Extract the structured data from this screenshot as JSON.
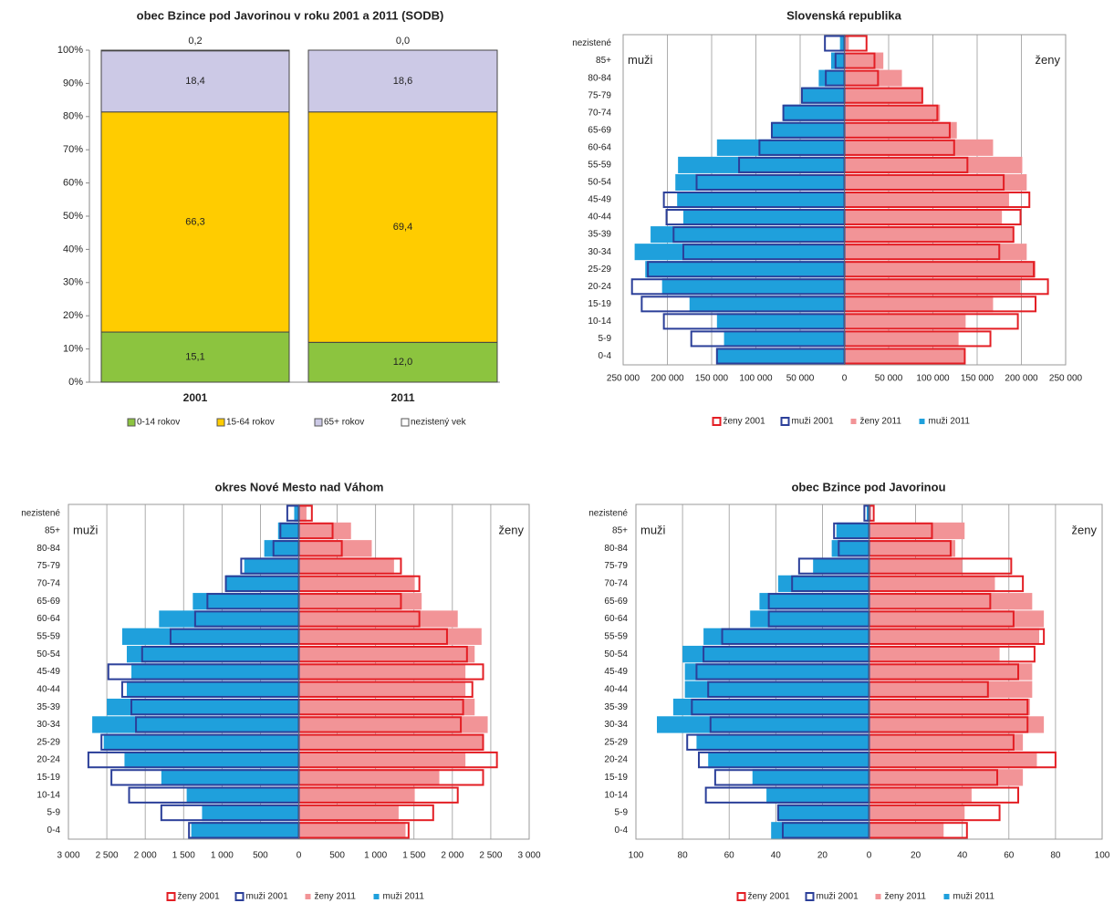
{
  "chart_data": [
    {
      "type": "stacked_bar",
      "title": "obec Bzince pod Javorinou v roku 2001 a 2011 (SODB)",
      "categories": [
        "2001",
        "2011"
      ],
      "series": [
        {
          "name": "0-14 rokov",
          "color": "#8cc43f",
          "values": [
            15.1,
            12.0
          ],
          "value_labels": [
            "15,1",
            "12,0"
          ]
        },
        {
          "name": "15-64 rokov",
          "color": "#ffcc00",
          "values": [
            66.3,
            69.4
          ],
          "value_labels": [
            "66,3",
            "69,4"
          ]
        },
        {
          "name": "65+ rokov",
          "color": "#ccc9e6",
          "values": [
            18.4,
            18.6
          ],
          "value_labels": [
            "18,4",
            "18,6"
          ]
        },
        {
          "name": "nezistený vek",
          "color": "#ffffff",
          "values": [
            0.2,
            0.0
          ],
          "value_labels": [
            "0,2",
            "0,0"
          ]
        }
      ],
      "ylim": [
        0,
        100
      ],
      "yticks": [
        {
          "value": 0,
          "label": "0%"
        },
        {
          "value": 10,
          "label": "10%"
        },
        {
          "value": 20,
          "label": "20%"
        },
        {
          "value": 30,
          "label": "30%"
        },
        {
          "value": 40,
          "label": "40%"
        },
        {
          "value": 50,
          "label": "50%"
        },
        {
          "value": 60,
          "label": "60%"
        },
        {
          "value": 70,
          "label": "70%"
        },
        {
          "value": 80,
          "label": "80%"
        },
        {
          "value": 90,
          "label": "90%"
        },
        {
          "value": 100,
          "label": "100%"
        }
      ]
    },
    {
      "type": "pyramid",
      "title": "Slovenská republika",
      "categories": [
        "0-4",
        "5-9",
        "10-14",
        "15-19",
        "20-24",
        "25-29",
        "30-34",
        "35-39",
        "40-44",
        "45-49",
        "50-54",
        "55-59",
        "60-64",
        "65-69",
        "70-74",
        "75-79",
        "80-84",
        "85+",
        "nezistené"
      ],
      "series": [
        {
          "name": "ženy 2001",
          "color": "#e31e24",
          "style": "outline",
          "side": "right",
          "values": [
            136000,
            165000,
            196000,
            216000,
            230000,
            214000,
            175000,
            191000,
            199000,
            209000,
            180000,
            139000,
            124000,
            119000,
            105000,
            88000,
            38000,
            34000,
            25000
          ]
        },
        {
          "name": "muži 2001",
          "color": "#2b3f99",
          "style": "outline",
          "side": "left",
          "values": [
            144000,
            173000,
            204000,
            229000,
            240000,
            222000,
            182000,
            193000,
            201000,
            204000,
            167000,
            119000,
            96000,
            82000,
            69000,
            48000,
            21000,
            10000,
            22000
          ]
        },
        {
          "name": "ženy 2011",
          "color": "#f29497",
          "style": "fill",
          "side": "right",
          "values": [
            136000,
            129000,
            137000,
            168000,
            199000,
            216000,
            206000,
            191000,
            178000,
            186000,
            206000,
            201000,
            168000,
            127000,
            108000,
            88000,
            65000,
            44000,
            5000
          ]
        },
        {
          "name": "muži 2011",
          "color": "#1fa0dc",
          "style": "fill",
          "side": "left",
          "values": [
            144000,
            136000,
            144000,
            175000,
            206000,
            225000,
            237000,
            219000,
            182000,
            189000,
            191000,
            188000,
            144000,
            82000,
            69000,
            48000,
            29000,
            15000,
            5000
          ]
        }
      ],
      "xlim": [
        -250000,
        250000
      ],
      "xticks": [
        {
          "value": -250000,
          "label": "250 000"
        },
        {
          "value": -200000,
          "label": "200 000"
        },
        {
          "value": -150000,
          "label": "150 000"
        },
        {
          "value": -100000,
          "label": "100 000"
        },
        {
          "value": -50000,
          "label": "50 000"
        },
        0,
        {
          "value": 50000,
          "label": "50 000"
        },
        {
          "value": 100000,
          "label": "100 000"
        },
        {
          "value": 150000,
          "label": "150 000"
        },
        {
          "value": 200000,
          "label": "200 000"
        },
        {
          "value": 250000,
          "label": "250 000"
        }
      ],
      "negative_tick_color": "#e31e24",
      "grid": true,
      "annotations": [
        "muži",
        "ženy"
      ]
    },
    {
      "type": "pyramid",
      "title": "okres Nové Mesto nad Váhom",
      "categories": [
        "0-4",
        "5-9",
        "10-14",
        "15-19",
        "20-24",
        "25-29",
        "30-34",
        "35-39",
        "40-44",
        "45-49",
        "50-54",
        "55-59",
        "60-64",
        "65-69",
        "70-74",
        "75-79",
        "80-84",
        "85+",
        "nezistené"
      ],
      "series": [
        {
          "name": "ženy 2001",
          "color": "#e31e24",
          "style": "outline",
          "side": "right",
          "values": [
            1430,
            1750,
            2070,
            2400,
            2580,
            2400,
            2110,
            2140,
            2260,
            2400,
            2190,
            1930,
            1570,
            1330,
            1570,
            1330,
            560,
            440,
            170
          ]
        },
        {
          "name": "muži 2001",
          "color": "#2b3f99",
          "style": "outline",
          "side": "left",
          "values": [
            1430,
            1790,
            2210,
            2440,
            2740,
            2570,
            2120,
            2180,
            2300,
            2480,
            2040,
            1670,
            1350,
            1190,
            950,
            750,
            330,
            240,
            150
          ]
        },
        {
          "name": "ženy 2011",
          "color": "#f29497",
          "style": "fill",
          "side": "right",
          "values": [
            1390,
            1300,
            1510,
            1830,
            2170,
            2400,
            2460,
            2290,
            2170,
            2170,
            2290,
            2380,
            2070,
            1600,
            1510,
            1240,
            950,
            680,
            100
          ]
        },
        {
          "name": "muži 2011",
          "color": "#1fa0dc",
          "style": "fill",
          "side": "left",
          "values": [
            1400,
            1260,
            1460,
            1790,
            2270,
            2540,
            2690,
            2500,
            2240,
            2180,
            2240,
            2300,
            1820,
            1380,
            950,
            710,
            450,
            270,
            60
          ]
        }
      ],
      "xlim": [
        -3000,
        3000
      ],
      "xticks": [
        {
          "value": -3000,
          "label": "3 000"
        },
        {
          "value": -2500,
          "label": "2 500"
        },
        {
          "value": -2000,
          "label": "2 000"
        },
        {
          "value": -1500,
          "label": "1 500"
        },
        {
          "value": -1000,
          "label": "1 000"
        },
        {
          "value": -500,
          "label": "500"
        },
        0,
        500,
        {
          "value": 1000,
          "label": "1 000"
        },
        {
          "value": 1500,
          "label": "1 500"
        },
        {
          "value": 2000,
          "label": "2 000"
        },
        {
          "value": 2500,
          "label": "2 500"
        },
        {
          "value": 3000,
          "label": "3 000"
        }
      ],
      "negative_tick_color": "#e31e24",
      "grid": true,
      "annotations": [
        "muži",
        "ženy"
      ]
    },
    {
      "type": "pyramid",
      "title": "obec Bzince pod Javorinou",
      "categories": [
        "0-4",
        "5-9",
        "10-14",
        "15-19",
        "20-24",
        "25-29",
        "30-34",
        "35-39",
        "40-44",
        "45-49",
        "50-54",
        "55-59",
        "60-64",
        "65-69",
        "70-74",
        "75-79",
        "80-84",
        "85+",
        "nezistené"
      ],
      "series": [
        {
          "name": "ženy 2001",
          "color": "#e31e24",
          "style": "outline",
          "side": "right",
          "values": [
            42,
            56,
            64,
            55,
            80,
            62,
            68,
            68,
            51,
            64,
            71,
            75,
            62,
            52,
            66,
            61,
            35,
            27,
            2
          ]
        },
        {
          "name": "muži 2001",
          "color": "#2b3f99",
          "style": "outline",
          "side": "left",
          "values": [
            37,
            39,
            70,
            66,
            73,
            78,
            68,
            76,
            69,
            74,
            71,
            63,
            43,
            43,
            33,
            30,
            13,
            15,
            2
          ]
        },
        {
          "name": "ženy 2011",
          "color": "#f29497",
          "style": "fill",
          "side": "right",
          "values": [
            32,
            41,
            44,
            66,
            72,
            66,
            75,
            69,
            70,
            70,
            56,
            73,
            75,
            70,
            54,
            40,
            37,
            41,
            1
          ]
        },
        {
          "name": "muži 2011",
          "color": "#1fa0dc",
          "style": "fill",
          "side": "left",
          "values": [
            42,
            39,
            44,
            50,
            69,
            74,
            91,
            84,
            79,
            79,
            80,
            71,
            51,
            47,
            39,
            24,
            16,
            14,
            1
          ]
        }
      ],
      "xlim": [
        -100,
        100
      ],
      "xticks": [
        {
          "value": -100,
          "label": "100"
        },
        {
          "value": -80,
          "label": "80"
        },
        {
          "value": -60,
          "label": "60"
        },
        {
          "value": -40,
          "label": "40"
        },
        {
          "value": -20,
          "label": "20"
        },
        0,
        20,
        40,
        60,
        80,
        100
      ],
      "negative_tick_color": "#e31e24",
      "grid": true,
      "annotations": [
        "muži",
        "ženy"
      ]
    }
  ]
}
